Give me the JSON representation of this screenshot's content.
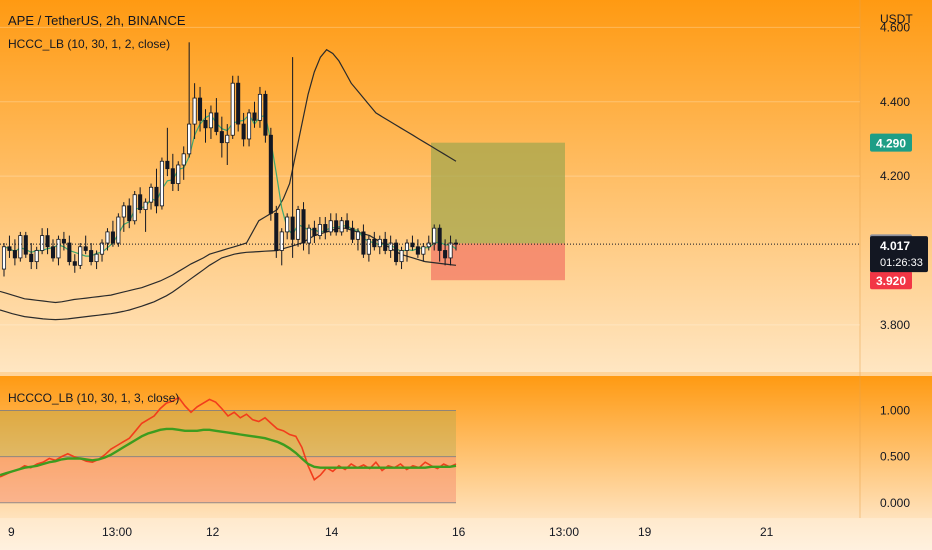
{
  "header": {
    "symbol_title": "APE / TetherUS, 2h, BINANCE",
    "indicator_main": "HCCC_LB (10, 30, 1, 2, close)",
    "indicator_sub": "HCCCO_LB (10, 30, 1, 3, close)",
    "currency": "USDT"
  },
  "price_axis": {
    "ticks": [
      "4.600",
      "4.400",
      "4.200",
      "3.800"
    ],
    "tick_values": [
      4.6,
      4.4,
      4.2,
      3.8
    ]
  },
  "badges": {
    "target": {
      "value": "4.290",
      "price": 4.29,
      "color": "#1e9e86"
    },
    "prev": {
      "value": "4.019",
      "price": 4.019,
      "color": "#8b8f9e"
    },
    "current": {
      "value": "4.017",
      "price": 4.017,
      "countdown": "01:26:33",
      "color": "#131722"
    },
    "stop": {
      "value": "3.920",
      "price": 3.92,
      "color": "#f23645"
    }
  },
  "osc_axis": {
    "ticks": [
      "1.000",
      "0.500",
      "0.000"
    ],
    "tick_values": [
      1.0,
      0.5,
      0.0
    ]
  },
  "time_axis": {
    "labels": [
      "9",
      "13:00",
      "12",
      "14",
      "16",
      "13:00",
      "19",
      "21"
    ]
  },
  "colors": {
    "up": "#ffffff",
    "down": "#131722",
    "band": "#2b2b2b",
    "mid": "#3fa86f",
    "osc_fast": "#f23d1c",
    "osc_slow": "#3d9c1f",
    "profit_zone": "#a6a74d",
    "loss_zone": "#f5846b"
  },
  "chart_data": {
    "type": "candlestick",
    "title": "APE / TetherUS, 2h, BINANCE",
    "ylim": [
      3.7,
      4.62
    ],
    "candles": [
      [
        3.95,
        4.02,
        3.93,
        4.01
      ],
      [
        4.01,
        4.04,
        3.98,
        4.0
      ],
      [
        4.0,
        4.03,
        3.96,
        3.98
      ],
      [
        3.98,
        4.05,
        3.97,
        4.04
      ],
      [
        4.04,
        4.05,
        3.98,
        3.99
      ],
      [
        3.99,
        4.02,
        3.95,
        3.97
      ],
      [
        3.97,
        4.01,
        3.95,
        4.0
      ],
      [
        4.0,
        4.06,
        3.99,
        4.04
      ],
      [
        4.04,
        4.06,
        3.99,
        4.01
      ],
      [
        4.01,
        4.03,
        3.97,
        3.98
      ],
      [
        3.98,
        4.04,
        3.96,
        4.03
      ],
      [
        4.03,
        4.05,
        4.0,
        4.02
      ],
      [
        4.02,
        4.04,
        3.96,
        3.97
      ],
      [
        3.97,
        3.99,
        3.94,
        3.96
      ],
      [
        3.96,
        4.02,
        3.95,
        4.01
      ],
      [
        4.01,
        4.04,
        3.99,
        4.0
      ],
      [
        4.0,
        4.02,
        3.96,
        3.97
      ],
      [
        3.97,
        4.0,
        3.95,
        3.99
      ],
      [
        3.99,
        4.03,
        3.97,
        4.02
      ],
      [
        4.02,
        4.06,
        4.0,
        4.05
      ],
      [
        4.05,
        4.08,
        4.01,
        4.02
      ],
      [
        4.02,
        4.1,
        4.01,
        4.09
      ],
      [
        4.09,
        4.13,
        4.05,
        4.12
      ],
      [
        4.12,
        4.14,
        4.06,
        4.08
      ],
      [
        4.08,
        4.16,
        4.07,
        4.15
      ],
      [
        4.15,
        4.17,
        4.1,
        4.11
      ],
      [
        4.11,
        4.14,
        4.05,
        4.13
      ],
      [
        4.13,
        4.18,
        4.11,
        4.17
      ],
      [
        4.17,
        4.22,
        4.1,
        4.12
      ],
      [
        4.12,
        4.25,
        4.11,
        4.24
      ],
      [
        4.24,
        4.33,
        4.2,
        4.22
      ],
      [
        4.22,
        4.26,
        4.16,
        4.18
      ],
      [
        4.18,
        4.24,
        4.16,
        4.23
      ],
      [
        4.23,
        4.28,
        4.19,
        4.26
      ],
      [
        4.26,
        4.56,
        4.25,
        4.34
      ],
      [
        4.34,
        4.45,
        4.3,
        4.41
      ],
      [
        4.41,
        4.44,
        4.32,
        4.35
      ],
      [
        4.35,
        4.38,
        4.29,
        4.33
      ],
      [
        4.33,
        4.39,
        4.3,
        4.37
      ],
      [
        4.37,
        4.41,
        4.31,
        4.32
      ],
      [
        4.32,
        4.36,
        4.25,
        4.29
      ],
      [
        4.29,
        4.34,
        4.23,
        4.31
      ],
      [
        4.31,
        4.47,
        4.3,
        4.45
      ],
      [
        4.45,
        4.47,
        4.32,
        4.34
      ],
      [
        4.34,
        4.37,
        4.28,
        4.3
      ],
      [
        4.3,
        4.38,
        4.28,
        4.37
      ],
      [
        4.37,
        4.4,
        4.33,
        4.35
      ],
      [
        4.35,
        4.44,
        4.33,
        4.42
      ],
      [
        4.42,
        4.43,
        4.29,
        4.31
      ],
      [
        4.31,
        4.33,
        4.08,
        4.1
      ],
      [
        4.1,
        4.12,
        3.98,
        4.0
      ],
      [
        4.0,
        4.06,
        3.96,
        4.05
      ],
      [
        4.05,
        4.1,
        4.03,
        4.09
      ],
      [
        4.09,
        4.52,
        3.98,
        4.03
      ],
      [
        4.03,
        4.12,
        4.01,
        4.11
      ],
      [
        4.11,
        4.13,
        4.0,
        4.02
      ],
      [
        4.02,
        4.07,
        3.99,
        4.06
      ],
      [
        4.06,
        4.08,
        4.02,
        4.04
      ],
      [
        4.04,
        4.09,
        4.03,
        4.07
      ],
      [
        4.07,
        4.09,
        4.03,
        4.05
      ],
      [
        4.05,
        4.1,
        4.04,
        4.08
      ],
      [
        4.08,
        4.1,
        4.04,
        4.05
      ],
      [
        4.05,
        4.09,
        4.04,
        4.08
      ],
      [
        4.08,
        4.1,
        4.05,
        4.06
      ],
      [
        4.06,
        4.08,
        4.02,
        4.03
      ],
      [
        4.03,
        4.06,
        4.0,
        4.05
      ],
      [
        4.05,
        4.07,
        3.98,
        3.99
      ],
      [
        3.99,
        4.04,
        3.97,
        4.03
      ],
      [
        4.03,
        4.05,
        4.0,
        4.01
      ],
      [
        4.01,
        4.04,
        3.99,
        4.03
      ],
      [
        4.03,
        4.05,
        3.99,
        4.0
      ],
      [
        4.0,
        4.04,
        3.98,
        4.02
      ],
      [
        4.02,
        4.03,
        3.96,
        3.97
      ],
      [
        3.97,
        4.01,
        3.95,
        4.0
      ],
      [
        4.0,
        4.03,
        3.97,
        4.02
      ],
      [
        4.02,
        4.04,
        4.0,
        4.01
      ],
      [
        4.01,
        4.03,
        3.98,
        3.99
      ],
      [
        3.99,
        4.02,
        3.97,
        4.01
      ],
      [
        4.01,
        4.04,
        4.0,
        4.02
      ],
      [
        4.02,
        4.07,
        4.0,
        4.06
      ],
      [
        4.06,
        4.07,
        3.97,
        4.0
      ],
      [
        4.0,
        4.03,
        3.96,
        3.98
      ],
      [
        3.98,
        4.04,
        3.96,
        4.02
      ],
      [
        4.02,
        4.03,
        4.0,
        4.017
      ]
    ],
    "upper_band": [
      3.89,
      3.885,
      3.88,
      3.875,
      3.87,
      3.868,
      3.866,
      3.864,
      3.862,
      3.86,
      3.862,
      3.865,
      3.868,
      3.87,
      3.872,
      3.874,
      3.876,
      3.878,
      3.88,
      3.884,
      3.888,
      3.892,
      3.896,
      3.9,
      3.906,
      3.912,
      3.918,
      3.926,
      3.934,
      3.944,
      3.954,
      3.964,
      3.972,
      3.98,
      3.99,
      3.995,
      4.0,
      4.005,
      4.01,
      4.015,
      4.02,
      4.05,
      4.08,
      4.09,
      4.1,
      4.11,
      4.14,
      4.18,
      4.26,
      4.34,
      4.42,
      4.48,
      4.52,
      4.54,
      4.53,
      4.51,
      4.48,
      4.45,
      4.43,
      4.41,
      4.39,
      4.37,
      4.36,
      4.35,
      4.34,
      4.33,
      4.32,
      4.31,
      4.3,
      4.29,
      4.28,
      4.27,
      4.26,
      4.25,
      4.24
    ],
    "lower_band": [
      3.84,
      3.835,
      3.83,
      3.826,
      3.822,
      3.82,
      3.818,
      3.816,
      3.815,
      3.814,
      3.815,
      3.816,
      3.818,
      3.82,
      3.822,
      3.824,
      3.826,
      3.828,
      3.83,
      3.833,
      3.836,
      3.84,
      3.845,
      3.85,
      3.856,
      3.862,
      3.87,
      3.878,
      3.888,
      3.9,
      3.912,
      3.924,
      3.936,
      3.948,
      3.96,
      3.97,
      3.98,
      3.985,
      3.99,
      3.993,
      3.995,
      3.996,
      3.997,
      3.998,
      3.999,
      4.0,
      4.005,
      4.01,
      4.015,
      4.02,
      4.03,
      4.04,
      4.045,
      4.05,
      4.055,
      4.06,
      4.06,
      4.055,
      4.05,
      4.045,
      4.04,
      4.03,
      4.02,
      4.01,
      4.0,
      3.99,
      3.985,
      3.98,
      3.975,
      3.97,
      3.968,
      3.966,
      3.964,
      3.962,
      3.96
    ],
    "oscillator": {
      "ylim": [
        -0.1,
        1.2
      ],
      "levels": [
        0.0,
        0.5,
        1.0
      ],
      "fast": [
        0.28,
        0.31,
        0.34,
        0.36,
        0.4,
        0.38,
        0.42,
        0.44,
        0.48,
        0.46,
        0.5,
        0.53,
        0.5,
        0.48,
        0.45,
        0.44,
        0.47,
        0.52,
        0.58,
        0.62,
        0.66,
        0.7,
        0.78,
        0.86,
        0.9,
        0.94,
        1.02,
        1.08,
        1.1,
        1.14,
        1.05,
        0.98,
        1.04,
        1.08,
        1.12,
        1.09,
        1.02,
        0.94,
        0.98,
        0.92,
        0.96,
        0.9,
        0.88,
        0.92,
        0.86,
        0.8,
        0.78,
        0.74,
        0.72,
        0.6,
        0.4,
        0.25,
        0.3,
        0.38,
        0.34,
        0.4,
        0.36,
        0.42,
        0.38,
        0.41,
        0.37,
        0.44,
        0.35,
        0.4,
        0.38,
        0.42,
        0.36,
        0.4,
        0.38,
        0.44,
        0.4,
        0.37,
        0.42,
        0.39,
        0.42
      ],
      "slow": [
        0.3,
        0.32,
        0.34,
        0.36,
        0.38,
        0.39,
        0.4,
        0.42,
        0.44,
        0.45,
        0.47,
        0.48,
        0.48,
        0.48,
        0.47,
        0.46,
        0.47,
        0.49,
        0.52,
        0.56,
        0.6,
        0.64,
        0.68,
        0.72,
        0.75,
        0.77,
        0.79,
        0.8,
        0.8,
        0.79,
        0.78,
        0.78,
        0.78,
        0.79,
        0.79,
        0.78,
        0.77,
        0.76,
        0.75,
        0.74,
        0.73,
        0.72,
        0.71,
        0.7,
        0.68,
        0.66,
        0.63,
        0.59,
        0.54,
        0.48,
        0.42,
        0.39,
        0.38,
        0.38,
        0.38,
        0.38,
        0.38,
        0.38,
        0.38,
        0.38,
        0.38,
        0.38,
        0.38,
        0.38,
        0.38,
        0.38,
        0.38,
        0.38,
        0.38,
        0.38,
        0.39,
        0.39,
        0.39,
        0.39,
        0.4
      ]
    },
    "position": {
      "entry": 4.019,
      "target": 4.29,
      "stop": 3.92
    }
  }
}
